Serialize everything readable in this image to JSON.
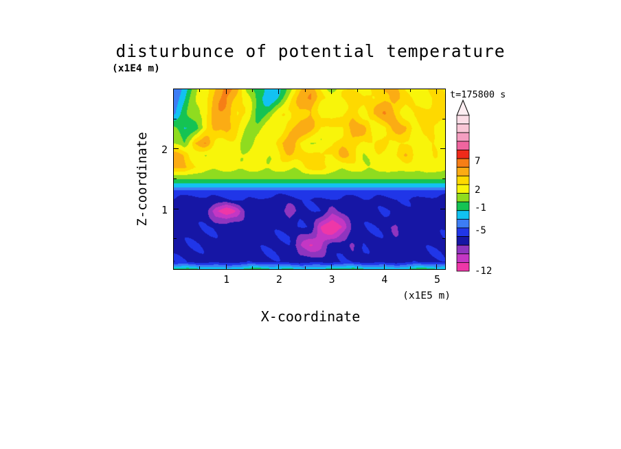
{
  "chart_data": {
    "type": "heatmap",
    "title": "disturbunce of potential temperature",
    "xlabel": "X-coordinate",
    "ylabel": "Z-coordinate",
    "x_unit_label": "(x1E5 m)",
    "y_unit_label": "(x1E4 m)",
    "time_label": "t=175800 s",
    "x_axis": {
      "min": 0,
      "max": 5.15,
      "ticks": [
        1,
        2,
        3,
        4,
        5
      ]
    },
    "z_axis": {
      "min": 0,
      "max": 3,
      "ticks": [
        1,
        2
      ]
    },
    "colorbar": {
      "value_min": -12,
      "value_max": 15,
      "band_step": 1.5,
      "labels": [
        7,
        2,
        -1,
        -5,
        -12
      ],
      "over_arrow_color": "#fdeef2",
      "band_colors": [
        "#ee37a8",
        "#c437c4",
        "#8f35bf",
        "#1616a5",
        "#2036e8",
        "#3d7df5",
        "#12c2f2",
        "#15c353",
        "#8fdc1f",
        "#f8f50a",
        "#fed900",
        "#fbac14",
        "#f67e16",
        "#ef2a1a",
        "#f0659f",
        "#f59ec1",
        "#f9c6d6",
        "#fbdde6"
      ]
    },
    "grid": {
      "x_min": 0,
      "x_max": 5.2,
      "nx": 27,
      "z_levels": [
        0.0,
        0.12,
        0.4,
        0.7,
        0.97,
        1.15,
        1.3,
        1.38,
        1.46,
        1.55,
        1.7,
        1.9,
        2.1,
        2.35,
        2.6,
        2.85,
        3.0
      ],
      "values": [
        [
          -1.2,
          -1.2,
          -1.2,
          -1.2,
          -1.2,
          -2.0,
          -1.2,
          -1.2,
          -1.2,
          -1.2,
          -1.2,
          -1.2,
          -1.2,
          -1.2,
          -2.0,
          -1.2,
          -1.2,
          -1.2,
          -1.2,
          -1.2,
          -1.2,
          -1.8,
          -1.2,
          -1.2,
          -1.2,
          -1.2,
          -1.2
        ],
        [
          -6.4,
          -6.4,
          -6.4,
          -6.4,
          -6.4,
          -6.4,
          -6.4,
          -6.4,
          -6.4,
          -6.4,
          -6.4,
          -6.4,
          -6.4,
          -6.4,
          -6.4,
          -6.4,
          -6.4,
          -6.4,
          -6.4,
          -6.4,
          -6.4,
          -6.4,
          -6.4,
          -6.4,
          -6.4,
          -6.4,
          -6.4
        ],
        [
          -6.4,
          -6.4,
          -6.4,
          -6.4,
          -6.4,
          -6.4,
          -6.4,
          -6.4,
          -6.4,
          -6.4,
          -6.4,
          -6.4,
          -9.0,
          -10.2,
          -9.2,
          -6.4,
          -6.4,
          -8.2,
          -6.4,
          -6.4,
          -6.4,
          -6.4,
          -6.4,
          -6.4,
          -6.4,
          -6.4,
          -6.4
        ],
        [
          -6.4,
          -6.4,
          -6.4,
          -6.4,
          -6.4,
          -6.4,
          -6.4,
          -6.4,
          -6.4,
          -6.4,
          -6.4,
          -6.4,
          -6.4,
          -6.4,
          -10.2,
          -12.6,
          -10.4,
          -6.4,
          -6.4,
          -6.4,
          -6.4,
          -8.0,
          -6.4,
          -6.4,
          -6.4,
          -6.4,
          -6.4
        ],
        [
          -6.4,
          -6.4,
          -6.4,
          -6.4,
          -10.8,
          -12.6,
          -10.2,
          -6.4,
          -6.4,
          -6.4,
          -6.4,
          -9.2,
          -6.4,
          -6.4,
          -6.4,
          -8.0,
          -6.4,
          -6.4,
          -6.4,
          -6.4,
          -6.4,
          -6.4,
          -6.4,
          -6.4,
          -6.4,
          -6.4,
          -6.4
        ],
        [
          -6.4,
          -6.4,
          -6.4,
          -6.4,
          -6.4,
          -6.4,
          -6.4,
          -6.4,
          -5.9,
          -6.4,
          -6.4,
          -6.4,
          -6.4,
          -6.4,
          -6.4,
          -6.4,
          -6.4,
          -6.4,
          -5.9,
          -6.4,
          -6.4,
          -6.4,
          -6.4,
          -6.4,
          -6.4,
          -6.4,
          -6.4
        ],
        [
          -5.0,
          -5.0,
          -5.0,
          -5.0,
          -5.0,
          -5.0,
          -5.0,
          -5.0,
          -5.0,
          -5.0,
          -5.0,
          -5.0,
          -5.0,
          -5.0,
          -5.0,
          -5.0,
          -5.0,
          -5.0,
          -5.0,
          -5.0,
          -5.0,
          -5.0,
          -5.0,
          -5.0,
          -5.0,
          -5.0,
          -5.0
        ],
        [
          -2.4,
          -2.4,
          -2.4,
          -2.4,
          -2.4,
          -2.4,
          -2.4,
          -2.4,
          -2.4,
          -2.4,
          -2.4,
          -2.4,
          -2.4,
          -2.4,
          -2.4,
          -2.4,
          -2.4,
          -2.4,
          -2.4,
          -2.4,
          -2.4,
          -2.4,
          -2.4,
          -2.4,
          -2.4,
          -2.4,
          -2.4
        ],
        [
          -0.9,
          -0.9,
          -0.9,
          -0.9,
          -0.9,
          -0.9,
          -0.9,
          -0.9,
          -0.9,
          -0.9,
          -0.9,
          -0.9,
          -0.9,
          -0.9,
          -0.9,
          -0.9,
          -0.9,
          -0.9,
          -0.9,
          -0.9,
          -0.9,
          -0.9,
          -0.9,
          -0.9,
          -0.9,
          -0.9,
          -0.9
        ],
        [
          0.9,
          0.9,
          0.9,
          0.9,
          0.9,
          0.9,
          0.9,
          0.9,
          0.9,
          0.9,
          0.9,
          0.9,
          0.9,
          0.9,
          0.9,
          0.9,
          0.9,
          0.9,
          0.9,
          0.9,
          0.9,
          0.9,
          0.9,
          0.9,
          0.9,
          0.9,
          0.9
        ],
        [
          4.6,
          5.2,
          3.0,
          1.9,
          1.9,
          1.9,
          1.9,
          1.9,
          1.9,
          1.9,
          1.9,
          1.9,
          1.9,
          3.6,
          4.4,
          2.4,
          1.9,
          1.9,
          1.9,
          1.9,
          1.9,
          2.4,
          1.9,
          1.9,
          2.6,
          1.9,
          1.9
        ],
        [
          5.4,
          4.6,
          2.0,
          1.0,
          2.6,
          2.2,
          2.2,
          2.2,
          2.2,
          2.2,
          2.4,
          4.2,
          5.0,
          3.2,
          2.2,
          2.2,
          4.4,
          3.6,
          2.2,
          2.2,
          2.2,
          3.4,
          4.2,
          2.4,
          2.2,
          2.6,
          2.2
        ],
        [
          1.0,
          0.0,
          4.8,
          5.6,
          2.8,
          2.2,
          2.2,
          0.6,
          2.2,
          2.2,
          4.4,
          5.2,
          2.8,
          2.2,
          2.2,
          3.0,
          4.6,
          5.0,
          2.4,
          2.2,
          4.4,
          2.6,
          2.2,
          3.4,
          2.2,
          2.6,
          2.2
        ],
        [
          0.5,
          -2.0,
          -0.5,
          2.2,
          5.0,
          5.8,
          2.6,
          1.2,
          1.0,
          2.2,
          2.4,
          4.6,
          5.4,
          4.4,
          2.4,
          2.6,
          2.4,
          4.4,
          5.0,
          2.6,
          2.8,
          4.6,
          5.2,
          2.6,
          2.8,
          3.2,
          2.4
        ],
        [
          -3.0,
          -1.0,
          1.5,
          2.6,
          5.2,
          6.4,
          3.0,
          2.2,
          -0.5,
          0.5,
          2.2,
          2.6,
          4.6,
          5.2,
          2.8,
          2.4,
          3.0,
          4.8,
          2.6,
          4.4,
          5.6,
          4.6,
          2.4,
          2.6,
          3.6,
          4.4,
          2.8
        ],
        [
          -3.4,
          -1.8,
          1.0,
          3.0,
          5.4,
          5.6,
          4.6,
          2.4,
          -1.4,
          -2.6,
          -0.6,
          2.2,
          4.8,
          5.6,
          3.0,
          2.4,
          2.6,
          3.4,
          2.6,
          2.8,
          4.8,
          5.4,
          3.0,
          2.4,
          2.6,
          3.6,
          2.6
        ],
        [
          -3.6,
          -2.2,
          0.5,
          2.6,
          5.0,
          6.0,
          5.2,
          1.4,
          -1.0,
          -2.8,
          -1.6,
          1.5,
          4.6,
          5.2,
          2.2,
          -0.4,
          2.4,
          2.8,
          2.2,
          4.2,
          5.0,
          4.4,
          2.6,
          2.2,
          2.8,
          3.8,
          2.4
        ]
      ]
    },
    "texture": {
      "lower": {
        "z_end": 1.28,
        "amplitude": 0.6,
        "k1x": 7.0,
        "k1z": 5.0,
        "k2x": 3.0,
        "k2z": 9.0
      },
      "upper": {
        "z_start": 1.58,
        "center_x": 3.0,
        "center_z": 1.45,
        "wavelength": 0.5,
        "amplitude": 0.9,
        "damping": 0.2
      }
    }
  }
}
